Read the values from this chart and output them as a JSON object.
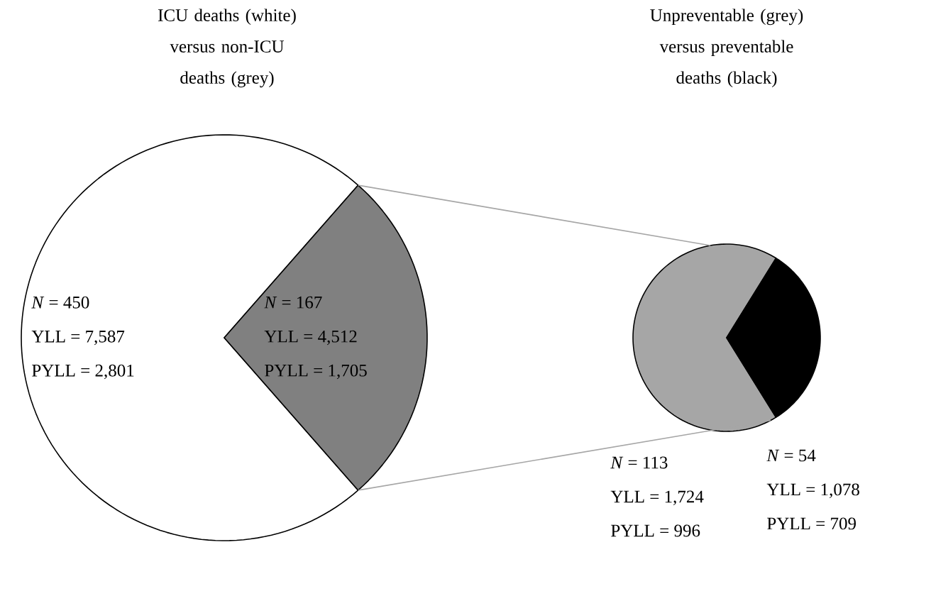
{
  "chart_data": [
    {
      "type": "pie",
      "title": "ICU deaths (white) versus non-ICU deaths (grey)",
      "categories": [
        null,
        null
      ],
      "values": [
        450,
        167
      ],
      "colors": [
        "#ffffff",
        "#808080"
      ],
      "value_labels": [
        "*N* = 450",
        "*N* = 167"
      ],
      "annotations": [
        "YLL = 7,587",
        "PYLL = 2,801",
        "YLL = 4,512",
        "PYLL = 1,705"
      ]
    },
    {
      "type": "pie",
      "title": "Unpreventable (grey) versus preventable deaths (black)",
      "categories": [
        null,
        null
      ],
      "values": [
        113,
        54
      ],
      "colors": [
        "#a6a6a6",
        "#000000"
      ],
      "value_labels": [
        "*N* = 113",
        "*N* = 54"
      ],
      "annotations": [
        "YLL = 1,724",
        "PYLL = 996",
        "YLL = 1,078",
        "PYLL = 709"
      ]
    }
  ]
}
